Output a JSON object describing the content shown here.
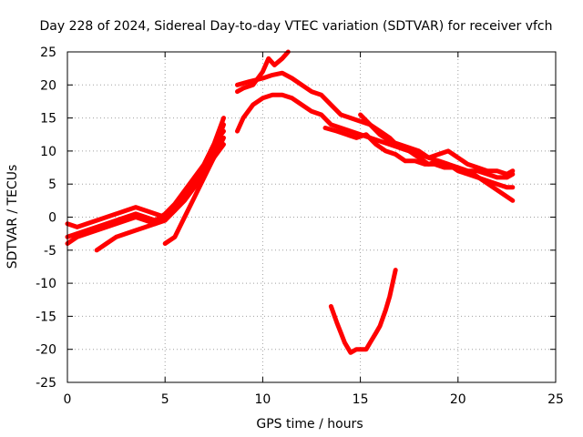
{
  "chart_data": {
    "type": "line",
    "title": "Day 228 of 2024, Sidereal Day-to-day VTEC variation (SDTVAR) for receiver vfch",
    "xlabel": "GPS time / hours",
    "ylabel": "SDTVAR / TECUs",
    "xlim": [
      0,
      25
    ],
    "ylim": [
      -25,
      25
    ],
    "xticks": [
      0,
      5,
      10,
      15,
      20,
      25
    ],
    "yticks": [
      -25,
      -20,
      -15,
      -10,
      -5,
      0,
      5,
      10,
      15,
      20,
      25
    ],
    "grid": true,
    "color": "#ff0000",
    "series": [
      {
        "name": "s1",
        "points": [
          [
            0,
            -1
          ],
          [
            0.5,
            -1.5
          ],
          [
            1,
            -1
          ],
          [
            1.5,
            -0.5
          ],
          [
            2,
            0
          ],
          [
            2.5,
            0.5
          ],
          [
            3,
            1
          ],
          [
            3.5,
            1.5
          ],
          [
            4,
            1
          ],
          [
            4.5,
            0.5
          ],
          [
            5,
            0
          ],
          [
            5.5,
            1
          ],
          [
            6,
            3
          ],
          [
            6.5,
            5
          ],
          [
            7,
            7
          ],
          [
            7.5,
            10
          ],
          [
            8,
            14
          ]
        ]
      },
      {
        "name": "s2",
        "points": [
          [
            0,
            -3
          ],
          [
            0.5,
            -2.5
          ],
          [
            1,
            -2
          ],
          [
            1.5,
            -1.5
          ],
          [
            2,
            -1
          ],
          [
            2.5,
            -0.5
          ],
          [
            3,
            0
          ],
          [
            3.5,
            0.5
          ],
          [
            4,
            0
          ],
          [
            4.5,
            -0.5
          ],
          [
            5,
            0.5
          ],
          [
            5.5,
            2
          ],
          [
            6,
            4
          ],
          [
            6.5,
            6
          ],
          [
            7,
            8
          ],
          [
            7.5,
            11
          ],
          [
            8,
            15
          ]
        ]
      },
      {
        "name": "s3",
        "points": [
          [
            0,
            -4
          ],
          [
            0.5,
            -3
          ],
          [
            1,
            -2.5
          ],
          [
            1.5,
            -2
          ],
          [
            2,
            -1.5
          ],
          [
            2.5,
            -1
          ],
          [
            3,
            -0.5
          ],
          [
            3.5,
            0
          ],
          [
            4,
            -0.5
          ],
          [
            4.5,
            -1
          ],
          [
            5,
            -0.5
          ],
          [
            5.5,
            1
          ],
          [
            6,
            2.5
          ],
          [
            6.5,
            4.5
          ],
          [
            7,
            6.5
          ],
          [
            7.5,
            9
          ],
          [
            8,
            12
          ]
        ]
      },
      {
        "name": "s4",
        "points": [
          [
            1.5,
            -5
          ],
          [
            2,
            -4
          ],
          [
            2.5,
            -3
          ],
          [
            3,
            -2.5
          ],
          [
            3.5,
            -2
          ],
          [
            4,
            -1.5
          ],
          [
            4.5,
            -1
          ],
          [
            5,
            0
          ],
          [
            5.5,
            1.5
          ],
          [
            6,
            3
          ],
          [
            6.5,
            5
          ],
          [
            7,
            8
          ],
          [
            7.5,
            11
          ],
          [
            8,
            13
          ]
        ]
      },
      {
        "name": "s5",
        "points": [
          [
            5,
            -4
          ],
          [
            5.5,
            -3
          ],
          [
            6,
            0
          ],
          [
            6.5,
            3
          ],
          [
            7,
            6
          ],
          [
            7.5,
            9
          ],
          [
            8,
            11
          ]
        ]
      },
      {
        "name": "s6",
        "points": [
          [
            8.7,
            13
          ],
          [
            9,
            15
          ],
          [
            9.5,
            17
          ],
          [
            10,
            18
          ],
          [
            10.5,
            18.5
          ],
          [
            11,
            18.5
          ],
          [
            11.5,
            18
          ],
          [
            12,
            17
          ],
          [
            12.5,
            16
          ],
          [
            13,
            15.5
          ],
          [
            13.5,
            14
          ],
          [
            14,
            13.5
          ],
          [
            14.5,
            13
          ],
          [
            15,
            12.5
          ],
          [
            15.5,
            12
          ],
          [
            16,
            11.5
          ],
          [
            16.5,
            11
          ],
          [
            17,
            10.5
          ],
          [
            17.5,
            10
          ],
          [
            18,
            9.5
          ],
          [
            18.5,
            9
          ],
          [
            19,
            8.5
          ],
          [
            19.5,
            8
          ],
          [
            20,
            7.5
          ],
          [
            20.5,
            7
          ],
          [
            21,
            7
          ],
          [
            21.5,
            6.5
          ],
          [
            22,
            6
          ],
          [
            22.5,
            6
          ],
          [
            22.8,
            6.5
          ]
        ]
      },
      {
        "name": "s7",
        "points": [
          [
            8.7,
            19
          ],
          [
            9,
            19.5
          ],
          [
            9.5,
            20
          ],
          [
            10,
            22
          ],
          [
            10.3,
            24
          ],
          [
            10.6,
            23
          ],
          [
            11,
            24
          ],
          [
            11.3,
            25
          ]
        ]
      },
      {
        "name": "s8",
        "points": [
          [
            8.7,
            20
          ],
          [
            9.3,
            20.5
          ],
          [
            10,
            21
          ],
          [
            10.5,
            21.5
          ],
          [
            11,
            21.8
          ],
          [
            11.5,
            21
          ],
          [
            12,
            20
          ],
          [
            12.5,
            19
          ],
          [
            13,
            18.5
          ],
          [
            13.5,
            17
          ],
          [
            14,
            15.5
          ],
          [
            14.5,
            15
          ],
          [
            15,
            14.5
          ],
          [
            15.5,
            14
          ],
          [
            16,
            12.5
          ],
          [
            16.5,
            11.5
          ],
          [
            17,
            11
          ],
          [
            17.5,
            10.5
          ],
          [
            18,
            10
          ],
          [
            18.5,
            9
          ],
          [
            19,
            9.5
          ],
          [
            19.5,
            10
          ],
          [
            20,
            9
          ],
          [
            20.5,
            8
          ],
          [
            21,
            7.5
          ],
          [
            21.5,
            7
          ],
          [
            22,
            7
          ],
          [
            22.5,
            6.5
          ],
          [
            22.8,
            7
          ]
        ]
      },
      {
        "name": "s9",
        "points": [
          [
            13.2,
            13.5
          ],
          [
            13.8,
            13
          ],
          [
            14.3,
            12.5
          ],
          [
            14.8,
            12
          ],
          [
            15.3,
            12.5
          ],
          [
            15.8,
            11
          ],
          [
            16.3,
            10
          ],
          [
            16.8,
            9.5
          ],
          [
            17.3,
            8.5
          ],
          [
            17.8,
            8.5
          ],
          [
            18.3,
            8
          ],
          [
            18.8,
            8
          ],
          [
            19.3,
            7.5
          ],
          [
            19.8,
            7.5
          ],
          [
            20.3,
            7
          ],
          [
            20.8,
            6.5
          ],
          [
            21.3,
            5.5
          ],
          [
            21.8,
            4.5
          ],
          [
            22.3,
            3.5
          ],
          [
            22.8,
            2.5
          ]
        ]
      },
      {
        "name": "s10",
        "points": [
          [
            15,
            15.5
          ],
          [
            15.5,
            14
          ],
          [
            16,
            13
          ],
          [
            16.5,
            12
          ],
          [
            17,
            10.5
          ],
          [
            17.5,
            10
          ],
          [
            18,
            9
          ],
          [
            18.5,
            8
          ],
          [
            19,
            8.5
          ],
          [
            19.5,
            8
          ],
          [
            20,
            7
          ],
          [
            20.5,
            6.5
          ],
          [
            21,
            6
          ],
          [
            21.5,
            5.5
          ],
          [
            22,
            5
          ],
          [
            22.5,
            4.5
          ],
          [
            22.8,
            4.5
          ]
        ]
      },
      {
        "name": "s11",
        "points": [
          [
            13.5,
            -13.5
          ],
          [
            13.8,
            -16
          ],
          [
            14,
            -17.5
          ],
          [
            14.2,
            -19
          ],
          [
            14.5,
            -20.5
          ],
          [
            14.8,
            -20
          ],
          [
            15,
            -20
          ],
          [
            15.3,
            -20
          ],
          [
            15.5,
            -19
          ],
          [
            15.8,
            -17.5
          ],
          [
            16,
            -16.5
          ],
          [
            16.3,
            -14
          ],
          [
            16.5,
            -12
          ],
          [
            16.8,
            -8
          ]
        ]
      }
    ]
  }
}
